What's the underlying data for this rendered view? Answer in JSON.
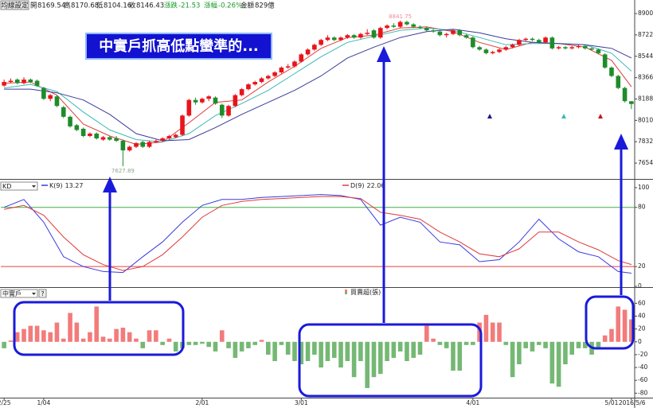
{
  "header": {
    "button": "均線設定",
    "open": "開",
    "high": "高",
    "low": "低",
    "close": "收",
    "change_label": "漲跌",
    "change": "-21.53",
    "pct_label": "漲幅",
    "pct": "-0.26%",
    "amount_label": "金額",
    "amount": "829億"
  },
  "annotation": "中實戶抓高低點蠻準的...",
  "chart_data": [
    {
      "type": "candlestick",
      "up_color": "#e8141a",
      "down_color": "#1e8c2a",
      "ylim": [
        7522,
        8960
      ],
      "yticks": [
        8900,
        8722,
        8544,
        8366,
        8188,
        8010,
        7832,
        7654
      ],
      "candles": [
        [
          8300,
          8350,
          8290,
          8330
        ],
        [
          8330,
          8360,
          8320,
          8340
        ],
        [
          8350,
          8360,
          8310,
          8320
        ],
        [
          8320,
          8370,
          8310,
          8350
        ],
        [
          8350,
          8360,
          8320,
          8330
        ],
        [
          8340,
          8350,
          8290,
          8300
        ],
        [
          8280,
          8290,
          8180,
          8190
        ],
        [
          8190,
          8230,
          8170,
          8220
        ],
        [
          8210,
          8220,
          8120,
          8130
        ],
        [
          8120,
          8130,
          8030,
          8040
        ],
        [
          8040,
          8050,
          7950,
          7960
        ],
        [
          7970,
          7980,
          7920,
          7930
        ],
        [
          7940,
          7950,
          7870,
          7880
        ],
        [
          7880,
          7910,
          7870,
          7900
        ],
        [
          7900,
          7910,
          7850,
          7860
        ],
        [
          7850,
          7880,
          7840,
          7870
        ],
        [
          7870,
          7880,
          7840,
          7850
        ],
        [
          7860,
          7880,
          7830,
          7840
        ],
        [
          7840,
          7850,
          7627.89,
          7760
        ],
        [
          7760,
          7800,
          7750,
          7790
        ],
        [
          7790,
          7830,
          7780,
          7820
        ],
        [
          7830,
          7840,
          7780,
          7790
        ],
        [
          7790,
          7840,
          7780,
          7830
        ],
        [
          7830,
          7850,
          7820,
          7840
        ],
        [
          7840,
          7870,
          7830,
          7860
        ],
        [
          7860,
          7890,
          7850,
          7880
        ],
        [
          7870,
          7900,
          7860,
          7890
        ],
        [
          7890,
          8060,
          7880,
          8050
        ],
        [
          8050,
          8190,
          8040,
          8180
        ],
        [
          8180,
          8200,
          8140,
          8160
        ],
        [
          8160,
          8200,
          8150,
          8190
        ],
        [
          8190,
          8220,
          8170,
          8210
        ],
        [
          8200,
          8210,
          8140,
          8150
        ],
        [
          8140,
          8150,
          8030,
          8050
        ],
        [
          8050,
          8140,
          8040,
          8130
        ],
        [
          8130,
          8230,
          8120,
          8220
        ],
        [
          8220,
          8280,
          8210,
          8270
        ],
        [
          8270,
          8320,
          8260,
          8310
        ],
        [
          8310,
          8340,
          8300,
          8330
        ],
        [
          8330,
          8370,
          8320,
          8360
        ],
        [
          8360,
          8390,
          8350,
          8380
        ],
        [
          8380,
          8420,
          8370,
          8410
        ],
        [
          8410,
          8460,
          8400,
          8450
        ],
        [
          8450,
          8480,
          8440,
          8460
        ],
        [
          8460,
          8510,
          8450,
          8500
        ],
        [
          8500,
          8570,
          8490,
          8560
        ],
        [
          8560,
          8610,
          8550,
          8600
        ],
        [
          8600,
          8650,
          8590,
          8640
        ],
        [
          8640,
          8690,
          8630,
          8680
        ],
        [
          8680,
          8720,
          8670,
          8700
        ],
        [
          8700,
          8710,
          8670,
          8680
        ],
        [
          8680,
          8710,
          8670,
          8700
        ],
        [
          8700,
          8730,
          8690,
          8720
        ],
        [
          8720,
          8730,
          8690,
          8700
        ],
        [
          8700,
          8740,
          8690,
          8730
        ],
        [
          8730,
          8770,
          8720,
          8740
        ],
        [
          8760,
          8770,
          8690,
          8700
        ],
        [
          8700,
          8790,
          8690,
          8780
        ],
        [
          8780,
          8810,
          8770,
          8800
        ],
        [
          8800,
          8820,
          8780,
          8790
        ],
        [
          8790,
          8841.75,
          8780,
          8830
        ],
        [
          8830,
          8840,
          8800,
          8810
        ],
        [
          8810,
          8820,
          8780,
          8790
        ],
        [
          8790,
          8800,
          8770,
          8780
        ],
        [
          8780,
          8790,
          8750,
          8760
        ],
        [
          8760,
          8770,
          8740,
          8750
        ],
        [
          8750,
          8760,
          8710,
          8720
        ],
        [
          8720,
          8740,
          8700,
          8730
        ],
        [
          8730,
          8770,
          8720,
          8760
        ],
        [
          8760,
          8770,
          8710,
          8720
        ],
        [
          8720,
          8730,
          8690,
          8700
        ],
        [
          8700,
          8710,
          8610,
          8620
        ],
        [
          8620,
          8630,
          8590,
          8600
        ],
        [
          8600,
          8610,
          8560,
          8570
        ],
        [
          8570,
          8590,
          8560,
          8580
        ],
        [
          8580,
          8610,
          8570,
          8600
        ],
        [
          8600,
          8630,
          8590,
          8620
        ],
        [
          8620,
          8650,
          8610,
          8640
        ],
        [
          8640,
          8690,
          8630,
          8680
        ],
        [
          8680,
          8700,
          8670,
          8690
        ],
        [
          8690,
          8700,
          8670,
          8680
        ],
        [
          8680,
          8690,
          8650,
          8660
        ],
        [
          8660,
          8710,
          8650,
          8700
        ],
        [
          8700,
          8710,
          8600,
          8610
        ],
        [
          8610,
          8630,
          8600,
          8620
        ],
        [
          8620,
          8630,
          8600,
          8610
        ],
        [
          8610,
          8630,
          8600,
          8620
        ],
        [
          8620,
          8640,
          8610,
          8630
        ],
        [
          8630,
          8640,
          8600,
          8610
        ],
        [
          8610,
          8620,
          8590,
          8600
        ],
        [
          8600,
          8610,
          8560,
          8570
        ],
        [
          8560,
          8570,
          8440,
          8450
        ],
        [
          8450,
          8460,
          8370,
          8380
        ],
        [
          8380,
          8390,
          8270,
          8280
        ],
        [
          8280,
          8290,
          8160,
          8170
        ],
        [
          8169.54,
          8170.68,
          8104.16,
          8146.43
        ]
      ],
      "series": [
        {
          "color": "#e03a3a",
          "x": [
            0,
            4,
            8,
            12,
            16,
            20,
            24,
            28,
            32,
            36,
            40,
            44,
            48,
            52,
            56,
            60,
            64,
            68,
            72,
            76,
            80,
            84,
            88,
            92,
            95
          ],
          "values": [
            8320,
            8330,
            8220,
            7980,
            7880,
            7810,
            7830,
            7990,
            8160,
            8180,
            8330,
            8460,
            8610,
            8700,
            8720,
            8780,
            8790,
            8750,
            8660,
            8600,
            8660,
            8650,
            8620,
            8510,
            8290
          ]
        },
        {
          "color": "#3fb7b7",
          "x": [
            0,
            4,
            8,
            12,
            16,
            20,
            24,
            28,
            32,
            36,
            40,
            44,
            48,
            52,
            56,
            60,
            64,
            68,
            72,
            76,
            80,
            84,
            88,
            92,
            95
          ],
          "values": [
            8280,
            8310,
            8250,
            8080,
            7930,
            7850,
            7830,
            7900,
            8050,
            8150,
            8260,
            8400,
            8540,
            8660,
            8710,
            8760,
            8780,
            8760,
            8700,
            8640,
            8650,
            8650,
            8640,
            8570,
            8420
          ]
        },
        {
          "color": "#3a3a9a",
          "x": [
            0,
            4,
            8,
            12,
            16,
            20,
            24,
            28,
            32,
            36,
            40,
            44,
            48,
            52,
            56,
            60,
            64,
            68,
            72,
            76,
            80,
            84,
            88,
            92,
            95
          ],
          "values": [
            8270,
            8270,
            8240,
            8180,
            8060,
            7900,
            7840,
            7850,
            7950,
            8060,
            8160,
            8260,
            8380,
            8530,
            8620,
            8700,
            8750,
            8770,
            8740,
            8690,
            8660,
            8650,
            8640,
            8610,
            8530
          ]
        }
      ]
    },
    {
      "type": "line",
      "panel_label": "KD",
      "ylim": [
        0,
        108
      ],
      "yticks": [
        100,
        80,
        20,
        0
      ],
      "reference_lines": [
        {
          "value": 80,
          "color": "#3cb043"
        },
        {
          "value": 20,
          "color": "#e84040"
        }
      ],
      "series": [
        {
          "name": "K(9)",
          "color": "#3a3ae0",
          "x": [
            0,
            3,
            6,
            9,
            12,
            15,
            18,
            21,
            24,
            27,
            30,
            33,
            36,
            39,
            42,
            45,
            48,
            51,
            54,
            57,
            60,
            63,
            66,
            69,
            72,
            75,
            78,
            81,
            84,
            87,
            90,
            93,
            95
          ],
          "values": [
            80,
            88,
            65,
            30,
            20,
            15,
            14,
            30,
            45,
            65,
            82,
            88,
            88,
            90,
            91,
            92,
            93,
            92,
            88,
            62,
            70,
            65,
            45,
            42,
            25,
            27,
            45,
            68,
            48,
            35,
            30,
            15,
            13.27
          ]
        },
        {
          "name": "D(9)",
          "color": "#e03a3a",
          "x": [
            0,
            3,
            6,
            9,
            12,
            15,
            18,
            21,
            24,
            27,
            30,
            33,
            36,
            39,
            42,
            45,
            48,
            51,
            54,
            57,
            60,
            63,
            66,
            69,
            72,
            75,
            78,
            81,
            84,
            87,
            90,
            93,
            95
          ],
          "values": [
            78,
            82,
            72,
            50,
            32,
            22,
            16,
            20,
            32,
            50,
            70,
            82,
            86,
            88,
            89,
            90,
            91,
            91,
            89,
            75,
            72,
            68,
            55,
            45,
            33,
            30,
            38,
            55,
            55,
            45,
            37,
            26,
            22.06
          ]
        }
      ]
    },
    {
      "type": "bar",
      "panel_label": "中實戶",
      "help": "?",
      "ylim": [
        -87,
        84
      ],
      "yticks": [
        60,
        40,
        20,
        0,
        -20,
        -40,
        -60,
        -80
      ],
      "categories": [
        "2/25",
        null,
        null,
        null,
        null,
        null,
        "1/04",
        null,
        null,
        null,
        null,
        null,
        null,
        null,
        null,
        null,
        null,
        null,
        null,
        null,
        null,
        null,
        null,
        null,
        null,
        null,
        null,
        null,
        null,
        null,
        "2/01",
        null,
        null,
        null,
        null,
        null,
        null,
        null,
        null,
        null,
        null,
        null,
        null,
        null,
        null,
        "3/01",
        null,
        null,
        null,
        null,
        null,
        null,
        null,
        null,
        null,
        null,
        null,
        null,
        null,
        null,
        null,
        null,
        null,
        null,
        null,
        null,
        null,
        null,
        null,
        null,
        null,
        "4/01",
        null,
        null,
        null,
        null,
        null,
        null,
        null,
        null,
        null,
        null,
        null,
        null,
        null,
        null,
        null,
        null,
        null,
        null,
        null,
        null,
        "5/01",
        null,
        null,
        "2016/5/6"
      ],
      "series": [
        {
          "name": "買賣超(張)",
          "color": "#f27b7b",
          "negative_color": "#74b874",
          "values": [
            -10,
            2,
            15,
            20,
            25,
            25,
            18,
            15,
            30,
            5,
            45,
            30,
            5,
            15,
            55,
            8,
            5,
            20,
            22,
            15,
            5,
            -10,
            18,
            18,
            -5,
            5,
            -15,
            -10,
            -5,
            -5,
            -3,
            -8,
            -15,
            18,
            -10,
            -25,
            -15,
            -10,
            -5,
            3,
            -20,
            -30,
            -5,
            -20,
            -30,
            -35,
            -30,
            -20,
            -40,
            -30,
            -25,
            -40,
            -30,
            -55,
            -30,
            -72,
            -55,
            -50,
            -30,
            -25,
            -15,
            -30,
            -25,
            -20,
            25,
            5,
            -5,
            -10,
            -45,
            -45,
            -5,
            -5,
            30,
            42,
            30,
            30,
            -5,
            -55,
            -35,
            -10,
            -15,
            -5,
            -10,
            -65,
            -70,
            -35,
            -20,
            -10,
            -10,
            -20,
            -10,
            10,
            20,
            55,
            50,
            35
          ]
        }
      ]
    }
  ]
}
